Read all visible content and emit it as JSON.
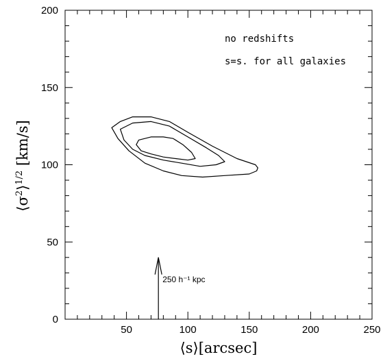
{
  "chart_data": {
    "type": "contour",
    "xlabel": "⟨s⟩[arcsec]",
    "ylabel": "⟨σ²⟩^1/2 [km/s]",
    "ylabel_parts": {
      "main": "⟨σ",
      "sup1": "2",
      "mid": "⟩",
      "sup2": "1/2",
      "unit": " [km/s]"
    },
    "xlim": [
      0,
      250
    ],
    "ylim": [
      0,
      200
    ],
    "x_ticks": [
      50,
      100,
      150,
      200,
      250
    ],
    "y_ticks": [
      0,
      50,
      100,
      150,
      200
    ],
    "x_minor_step": 10,
    "y_minor_step": 10,
    "annotations": [
      "no redshifts",
      "s=s. for all galaxies"
    ],
    "arrow": {
      "x": 76,
      "y_from": 0,
      "y_to": 40,
      "label": "250 h⁻¹ kpc"
    },
    "contours": [
      {
        "name": "inner",
        "points": [
          [
            60,
            116
          ],
          [
            70,
            118
          ],
          [
            80,
            118
          ],
          [
            88,
            117
          ],
          [
            96,
            113
          ],
          [
            103,
            108
          ],
          [
            106,
            104
          ],
          [
            100,
            103
          ],
          [
            90,
            104
          ],
          [
            80,
            105
          ],
          [
            70,
            107
          ],
          [
            62,
            109
          ],
          [
            58,
            113
          ],
          [
            60,
            116
          ]
        ]
      },
      {
        "name": "middle",
        "points": [
          [
            45,
            123
          ],
          [
            55,
            127
          ],
          [
            70,
            128
          ],
          [
            85,
            125
          ],
          [
            100,
            118
          ],
          [
            115,
            111
          ],
          [
            125,
            106
          ],
          [
            130,
            102
          ],
          [
            123,
            100
          ],
          [
            110,
            99
          ],
          [
            95,
            101
          ],
          [
            80,
            103
          ],
          [
            65,
            106
          ],
          [
            55,
            110
          ],
          [
            48,
            116
          ],
          [
            45,
            123
          ]
        ]
      },
      {
        "name": "outer",
        "points": [
          [
            38,
            124
          ],
          [
            45,
            128
          ],
          [
            55,
            131
          ],
          [
            70,
            131
          ],
          [
            85,
            128
          ],
          [
            100,
            121
          ],
          [
            120,
            112
          ],
          [
            140,
            104
          ],
          [
            155,
            100
          ],
          [
            157,
            98
          ],
          [
            156,
            96
          ],
          [
            150,
            94
          ],
          [
            130,
            93
          ],
          [
            112,
            92
          ],
          [
            95,
            93
          ],
          [
            80,
            96
          ],
          [
            65,
            101
          ],
          [
            52,
            109
          ],
          [
            43,
            117
          ],
          [
            38,
            124
          ]
        ]
      }
    ]
  }
}
